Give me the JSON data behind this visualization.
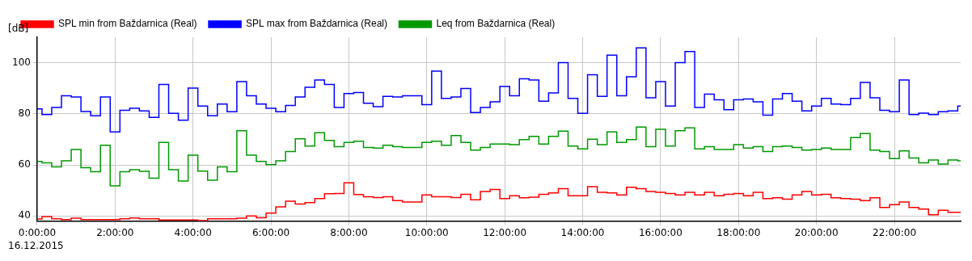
{
  "chart_data": {
    "type": "step",
    "ylabel": "[dB]",
    "annotations": [
      "16.12.2015"
    ],
    "legend": "top left",
    "grid": true,
    "xlim": [
      0,
      23.7
    ],
    "ylim": [
      38,
      110
    ],
    "xticks": [
      {
        "value": 0,
        "label": "0:00:00"
      },
      {
        "value": 2,
        "label": "2:00:00"
      },
      {
        "value": 4,
        "label": "4:00:00"
      },
      {
        "value": 6,
        "label": "6:00:00"
      },
      {
        "value": 8,
        "label": "8:00:00"
      },
      {
        "value": 10,
        "label": "10:00:00"
      },
      {
        "value": 12,
        "label": "12:00:00"
      },
      {
        "value": 14,
        "label": "14:00:00"
      },
      {
        "value": 16,
        "label": "16:00:00"
      },
      {
        "value": 18,
        "label": "18:00:00"
      },
      {
        "value": 20,
        "label": "20:00:00"
      },
      {
        "value": 22,
        "label": "22:00:00"
      }
    ],
    "yticks": [
      40,
      60,
      80,
      100
    ],
    "x": [
      0,
      0.125,
      0.375,
      0.625,
      0.875,
      1.125,
      1.375,
      1.625,
      1.875,
      2.125,
      2.375,
      2.625,
      2.875,
      3.125,
      3.375,
      3.625,
      3.875,
      4.125,
      4.375,
      4.625,
      4.875,
      5.125,
      5.375,
      5.625,
      5.875,
      6.125,
      6.375,
      6.625,
      6.875,
      7.125,
      7.375,
      7.625,
      7.875,
      8.125,
      8.375,
      8.625,
      8.875,
      9.125,
      9.375,
      9.625,
      9.875,
      10.125,
      10.375,
      10.625,
      10.875,
      11.125,
      11.375,
      11.625,
      11.875,
      12.125,
      12.375,
      12.625,
      12.875,
      13.125,
      13.375,
      13.625,
      13.875,
      14.125,
      14.375,
      14.625,
      14.875,
      15.125,
      15.375,
      15.625,
      15.875,
      16.125,
      16.375,
      16.625,
      16.875,
      17.125,
      17.375,
      17.625,
      17.875,
      18.125,
      18.375,
      18.625,
      18.875,
      19.125,
      19.375,
      19.625,
      19.875,
      20.125,
      20.375,
      20.625,
      20.875,
      21.125,
      21.375,
      21.625,
      21.875,
      22.125,
      22.375,
      22.625,
      22.875,
      23.125,
      23.375,
      23.625
    ],
    "series": [
      {
        "name": "SPL min from Baždarnica (Real)",
        "color": "#ff0000",
        "values": [
          38.8,
          39.8,
          38.9,
          38.6,
          39.1,
          38.6,
          38.6,
          38.6,
          38.6,
          38.9,
          39.2,
          38.9,
          38.9,
          38.4,
          38.4,
          38.4,
          38.4,
          38.2,
          38.9,
          38.9,
          38.9,
          39.1,
          40.0,
          39.3,
          41.1,
          43.6,
          45.8,
          44.7,
          45.2,
          46.8,
          48.7,
          48.8,
          53.0,
          48.4,
          47.5,
          47.2,
          47.5,
          46.0,
          45.5,
          45.5,
          48.2,
          47.5,
          47.5,
          47.2,
          48.5,
          46.3,
          49.6,
          50.4,
          46.8,
          47.9,
          47.1,
          47.4,
          48.5,
          49.0,
          50.7,
          47.9,
          47.9,
          51.5,
          49.3,
          49.0,
          48.2,
          51.2,
          50.7,
          49.6,
          49.3,
          48.8,
          48.2,
          49.3,
          48.2,
          49.3,
          47.9,
          48.5,
          48.8,
          47.9,
          49.3,
          46.8,
          47.1,
          46.6,
          48.2,
          49.6,
          48.2,
          48.5,
          47.1,
          46.8,
          46.6,
          46.0,
          47.1,
          43.3,
          44.4,
          45.5,
          43.3,
          42.7,
          40.5,
          42.2,
          41.4,
          41.4
        ]
      },
      {
        "name": "SPL max from Baždarnica (Real)",
        "color": "#0000ff",
        "values": [
          81.9,
          79.7,
          82.5,
          87.1,
          86.6,
          80.9,
          79.2,
          86.6,
          72.9,
          81.4,
          82.2,
          81.1,
          78.6,
          91.5,
          80.2,
          77.5,
          90.1,
          83.0,
          79.2,
          83.8,
          80.8,
          92.6,
          87.1,
          83.8,
          82.2,
          80.8,
          83.3,
          86.6,
          90.4,
          93.2,
          91.5,
          82.5,
          87.9,
          88.3,
          84.1,
          82.8,
          86.8,
          86.6,
          87.1,
          87.1,
          83.6,
          96.7,
          86.0,
          86.6,
          89.9,
          80.5,
          82.5,
          84.7,
          90.7,
          87.1,
          93.7,
          93.2,
          84.9,
          88.2,
          100.0,
          86.0,
          80.2,
          95.3,
          86.8,
          103.0,
          87.1,
          94.5,
          105.8,
          86.3,
          92.6,
          83.0,
          100.0,
          104.4,
          82.5,
          87.7,
          85.5,
          81.6,
          85.5,
          85.8,
          84.7,
          79.5,
          85.8,
          87.9,
          84.9,
          81.1,
          83.0,
          86.0,
          83.8,
          83.6,
          86.0,
          92.3,
          86.3,
          81.4,
          80.8,
          93.2,
          79.7,
          80.3,
          79.7,
          80.8,
          81.1,
          83.0
        ]
      },
      {
        "name": "Leq from Baždarnica (Real)",
        "color": "#009900",
        "values": [
          61.4,
          60.8,
          59.2,
          61.6,
          66.0,
          58.9,
          57.3,
          67.7,
          51.8,
          57.3,
          58.1,
          57.5,
          54.8,
          68.8,
          58.1,
          53.7,
          63.8,
          57.6,
          54.0,
          59.2,
          57.3,
          73.4,
          63.8,
          61.4,
          60.1,
          61.6,
          65.2,
          70.2,
          67.4,
          72.6,
          69.6,
          67.1,
          68.8,
          69.3,
          66.8,
          66.6,
          67.7,
          67.1,
          66.8,
          66.8,
          68.8,
          69.3,
          67.7,
          71.5,
          68.8,
          65.8,
          66.8,
          68.2,
          68.2,
          67.9,
          69.9,
          71.2,
          68.2,
          71.2,
          73.2,
          67.4,
          66.3,
          70.1,
          67.9,
          72.9,
          68.8,
          69.9,
          74.8,
          67.1,
          73.9,
          67.4,
          73.4,
          74.5,
          66.3,
          67.1,
          66.0,
          66.0,
          67.9,
          66.6,
          67.1,
          65.2,
          67.1,
          67.4,
          66.8,
          65.8,
          66.0,
          66.6,
          66.0,
          66.0,
          70.7,
          72.3,
          65.8,
          65.2,
          62.5,
          65.5,
          62.7,
          60.8,
          61.9,
          60.3,
          61.9,
          61.6
        ]
      }
    ]
  }
}
